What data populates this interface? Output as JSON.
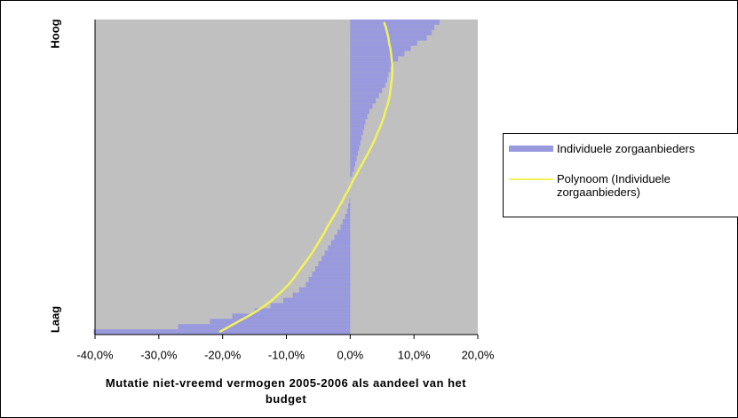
{
  "chart_data": {
    "type": "barh",
    "x_label": "Mutatie niet-vreemd vermogen 2005-2006 als aandeel van het budget",
    "y_label_top": "Hoog",
    "y_label_bottom": "Laag",
    "categories": [
      null,
      null,
      null,
      null,
      null,
      null,
      null,
      null,
      null,
      null,
      null,
      null,
      null,
      null,
      null,
      null,
      null,
      null,
      null,
      null,
      null,
      null,
      null,
      null,
      null,
      null,
      null,
      null,
      null,
      null,
      null,
      null,
      null,
      null,
      null,
      null,
      null,
      null,
      null,
      null,
      null,
      null,
      null,
      null,
      null,
      null,
      null,
      null,
      null,
      null,
      null,
      null,
      null,
      null,
      null,
      null,
      null,
      null,
      null,
      null
    ],
    "series": [
      {
        "name": "Individuele zorgaanbieders",
        "color": "#9999dd",
        "values": [
          -40.2,
          -27,
          -22,
          -18.5,
          -15,
          -12.5,
          -10.5,
          -9,
          -8,
          -7,
          -6.5,
          -6,
          -5.5,
          -5,
          -4.5,
          -4,
          -3.5,
          -3,
          -2.5,
          -2,
          -1.5,
          -1.2,
          -0.8,
          -0.5,
          -0.3,
          -0.1,
          0,
          0,
          0,
          0,
          0.3,
          0.6,
          0.8,
          1,
          1.2,
          1.4,
          1.6,
          1.8,
          2,
          2.2,
          2.4,
          2.7,
          3,
          3.5,
          4,
          4.5,
          5,
          5.5,
          5.8,
          6,
          6.3,
          6.8,
          7.5,
          8.5,
          9.5,
          10.5,
          12,
          12.8,
          13.2,
          14
        ]
      },
      {
        "name": "Polynoom (Individuele zorgaanbieders)",
        "color": "#f2f25a",
        "kind": "line",
        "values": [
          -20.5,
          -19,
          -17.5,
          -16,
          -14.6,
          -13.4,
          -12.3,
          -11.4,
          -10.5,
          -9.7,
          -9,
          -8.4,
          -7.8,
          -7.2,
          -6.6,
          -6,
          -5.5,
          -5,
          -4.5,
          -4,
          -3.6,
          -3.1,
          -2.6,
          -2.1,
          -1.7,
          -1.2,
          -0.8,
          -0.3,
          0.1,
          0.5,
          1,
          1.4,
          1.9,
          2.3,
          2.8,
          3.2,
          3.6,
          4,
          4.3,
          4.7,
          5,
          5.3,
          5.5,
          5.8,
          6,
          6.2,
          6.3,
          6.4,
          6.5,
          6.6,
          6.6,
          6.6,
          6.5,
          6.4,
          6.3,
          6.1,
          6,
          5.8,
          5.6,
          5.3
        ]
      }
    ],
    "xlim": [
      -40,
      20
    ],
    "xticks": [
      {
        "value": -40,
        "label": "-40,0%"
      },
      {
        "value": -30,
        "label": "-30,0%"
      },
      {
        "value": -20,
        "label": "-20,0%"
      },
      {
        "value": -10,
        "label": "-10,0%"
      },
      {
        "value": 0,
        "label": "0,0%"
      },
      {
        "value": 10,
        "label": "10,0%"
      },
      {
        "value": 20,
        "label": "20,0%"
      }
    ],
    "plot_background": "#c0c0c0",
    "legend": "right"
  }
}
